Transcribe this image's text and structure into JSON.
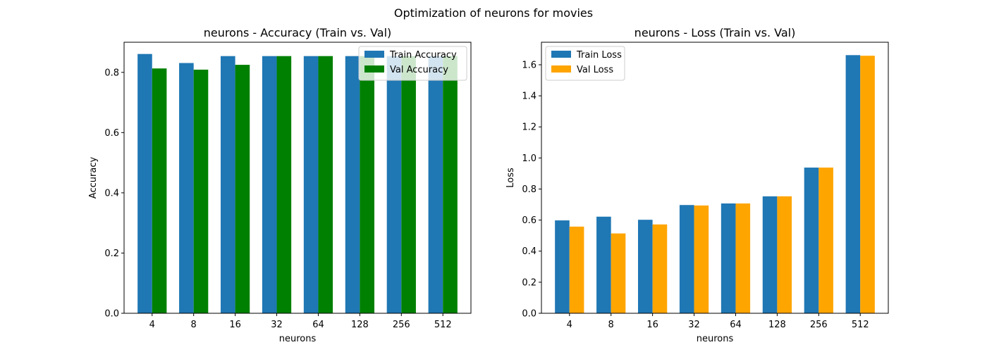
{
  "figure": {
    "suptitle": "Optimization of neurons for movies"
  },
  "chart_data": [
    {
      "type": "bar",
      "title": "neurons - Accuracy (Train vs. Val)",
      "xlabel": "neurons",
      "ylabel": "Accuracy",
      "categories": [
        "4",
        "8",
        "16",
        "32",
        "64",
        "128",
        "256",
        "512"
      ],
      "ylim": [
        0,
        0.9
      ],
      "yticks": [
        0.0,
        0.2,
        0.4,
        0.6,
        0.8
      ],
      "ytick_labels": [
        "0.0",
        "0.2",
        "0.4",
        "0.6",
        "0.8"
      ],
      "grid": false,
      "legend_position": "upper right",
      "series": [
        {
          "name": "Train Accuracy",
          "color": "#1f77b4",
          "values": [
            0.861,
            0.831,
            0.854,
            0.854,
            0.854,
            0.854,
            0.854,
            0.854
          ]
        },
        {
          "name": "Val Accuracy",
          "color": "#008000",
          "values": [
            0.813,
            0.809,
            0.825,
            0.854,
            0.854,
            0.854,
            0.854,
            0.854
          ]
        }
      ]
    },
    {
      "type": "bar",
      "title": "neurons - Loss (Train vs. Val)",
      "xlabel": "neurons",
      "ylabel": "Loss",
      "categories": [
        "4",
        "8",
        "16",
        "32",
        "64",
        "128",
        "256",
        "512"
      ],
      "ylim": [
        0,
        1.745
      ],
      "yticks": [
        0.0,
        0.2,
        0.4,
        0.6,
        0.8,
        1.0,
        1.2,
        1.4,
        1.6
      ],
      "ytick_labels": [
        "0.0",
        "0.2",
        "0.4",
        "0.6",
        "0.8",
        "1.0",
        "1.2",
        "1.4",
        "1.6"
      ],
      "grid": false,
      "legend_position": "upper left",
      "series": [
        {
          "name": "Train Loss",
          "color": "#1f77b4",
          "values": [
            0.598,
            0.622,
            0.602,
            0.697,
            0.707,
            0.753,
            0.938,
            1.662
          ]
        },
        {
          "name": "Val Loss",
          "color": "#ffa500",
          "values": [
            0.558,
            0.514,
            0.572,
            0.694,
            0.707,
            0.753,
            0.938,
            1.658
          ]
        }
      ]
    }
  ]
}
